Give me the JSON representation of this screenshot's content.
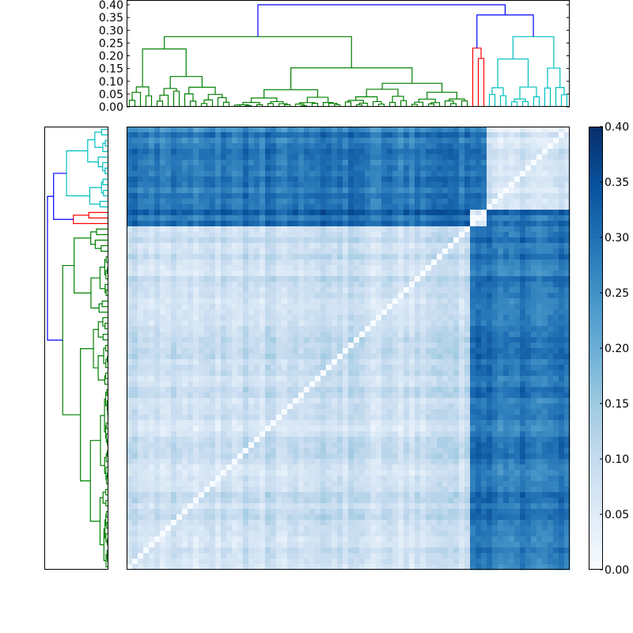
{
  "chart_data": [
    {
      "type": "dendrogram",
      "panel": "top",
      "orientation": "top",
      "ylim": [
        0,
        0.4
      ],
      "yticks": [
        "0.00",
        "0.05",
        "0.10",
        "0.15",
        "0.20",
        "0.25",
        "0.30",
        "0.35",
        "0.40"
      ],
      "leaf_count": 80,
      "root_height": 0.4,
      "clusters": [
        {
          "color": "#008000",
          "leaves": [
            0,
            61
          ],
          "merge_height": 0.275
        },
        {
          "color": "#ff0000",
          "leaves": [
            62,
            64
          ],
          "merge_height": 0.23
        },
        {
          "color": "#00bfbf",
          "leaves": [
            65,
            79
          ],
          "merge_height": 0.275
        }
      ],
      "link_color_above_threshold": "#0000ff",
      "upper_merges": [
        {
          "height": 0.36,
          "between": [
            "red",
            "cyan"
          ]
        },
        {
          "height": 0.4,
          "between": [
            "green",
            "red+cyan"
          ]
        }
      ]
    },
    {
      "type": "dendrogram",
      "panel": "left",
      "orientation": "left",
      "leaf_count": 80,
      "clusters": [
        {
          "color": "#00bfbf",
          "position": "top"
        },
        {
          "color": "#ff0000",
          "position": "middle"
        },
        {
          "color": "#008000",
          "position": "bottom"
        }
      ]
    },
    {
      "type": "heatmap",
      "panel": "matrix",
      "rows": 80,
      "cols": 80,
      "colormap": "Blues",
      "value_range": [
        0,
        0.4
      ],
      "diagonal": 0.0,
      "blocks": [
        {
          "rows": [
            0,
            61
          ],
          "cols": [
            0,
            61
          ],
          "approx_value": 0.08,
          "label": "green-green"
        },
        {
          "rows": [
            62,
            64
          ],
          "cols": [
            62,
            64
          ],
          "approx_value": 0.05,
          "label": "red-red"
        },
        {
          "rows": [
            65,
            79
          ],
          "cols": [
            65,
            79
          ],
          "approx_value": 0.06,
          "label": "cyan-cyan"
        },
        {
          "rows": [
            0,
            61
          ],
          "cols": [
            62,
            64
          ],
          "approx_value": 0.3,
          "label": "green-red"
        },
        {
          "rows": [
            0,
            61
          ],
          "cols": [
            65,
            79
          ],
          "approx_value": 0.29,
          "label": "green-cyan"
        },
        {
          "rows": [
            62,
            64
          ],
          "cols": [
            65,
            79
          ],
          "approx_value": 0.31,
          "label": "red-cyan"
        }
      ]
    },
    {
      "type": "colorbar",
      "panel": "colorbar",
      "range": [
        0,
        0.4
      ],
      "ticks": [
        "0.00",
        "0.05",
        "0.10",
        "0.15",
        "0.20",
        "0.25",
        "0.30",
        "0.35",
        "0.40"
      ]
    }
  ],
  "colors": {
    "green": "#008000",
    "red": "#ff0000",
    "cyan": "#00bfbf",
    "blue": "#0000ff"
  }
}
